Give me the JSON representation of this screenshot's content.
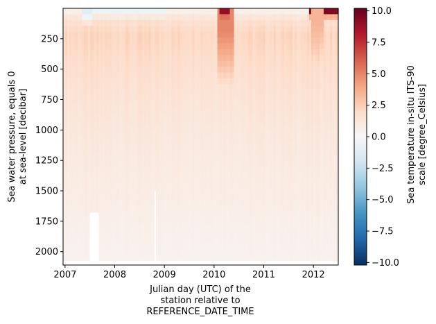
{
  "chart_data": {
    "type": "heatmap",
    "title": "",
    "xlabel": [
      "Julian day (UTC) of the",
      "station relative to",
      "REFERENCE_DATE_TIME"
    ],
    "ylabel": [
      "Sea water pressure, equals 0",
      "at sea-level [decibar]"
    ],
    "colorbar_label": [
      "Sea temperature in-situ ITS-90",
      "scale [degree_Celsius]"
    ],
    "colormap": "RdBu_r",
    "x_range": [
      2006.96,
      2012.5
    ],
    "y_range": [
      2110,
      0
    ],
    "y_inverted": true,
    "color_range": [
      -10.2,
      10.2
    ],
    "x_ticks": [
      2007,
      2008,
      2009,
      2010,
      2011,
      2012
    ],
    "x_tick_labels": [
      "2007",
      "2008",
      "2009",
      "2010",
      "2011",
      "2012"
    ],
    "y_ticks": [
      250,
      500,
      750,
      1000,
      1250,
      1500,
      1750,
      2000
    ],
    "y_tick_labels": [
      "250",
      "500",
      "750",
      "1000",
      "1250",
      "1500",
      "1750",
      "2000"
    ],
    "colorbar_ticks": [
      10.0,
      7.5,
      5.0,
      2.5,
      0.0,
      -2.5,
      -5.0,
      -7.5,
      -10.0
    ],
    "colorbar_tick_labels": [
      "10.0",
      "7.5",
      "5.0",
      "2.5",
      "0.0",
      "−2.5",
      "−5.0",
      "−7.5",
      "−10.0"
    ],
    "depth_temperature_profile": {
      "pressure": [
        0,
        100,
        200,
        300,
        400,
        600,
        800,
        1000,
        1200,
        1400,
        1600,
        1800,
        2000,
        2110
      ],
      "temperature": [
        0.3,
        1.6,
        2.2,
        2.1,
        1.9,
        1.6,
        1.35,
        1.15,
        1.0,
        0.85,
        0.7,
        0.55,
        0.45,
        0.4
      ]
    },
    "surface_anomalies": [
      {
        "x_start": 2007.35,
        "x_end": 2007.55,
        "p_max": 140,
        "temperature": -1.2
      },
      {
        "x_start": 2007.55,
        "x_end": 2009.0,
        "p_max": 80,
        "temperature": -0.5
      },
      {
        "x_start": 2010.05,
        "x_end": 2010.4,
        "p_max": 650,
        "temperature": 5.0
      },
      {
        "x_start": 2010.1,
        "x_end": 2010.3,
        "p_max": 80,
        "temperature": 9.0
      },
      {
        "x_start": 2011.9,
        "x_end": 2012.5,
        "p_max": 90,
        "temperature": 9.5
      },
      {
        "x_start": 2011.95,
        "x_end": 2012.2,
        "p_max": 450,
        "temperature": 3.5
      }
    ],
    "missing_data_regions": [
      {
        "x_start": 2007.5,
        "x_end": 2007.68,
        "p_min": 1680,
        "p_max": 2110
      },
      {
        "x_start": 2008.8,
        "x_end": 2008.83,
        "p_min": 1500,
        "p_max": 2110
      },
      {
        "x_start": 2006.96,
        "x_end": 2012.5,
        "p_min": 2075,
        "p_max": 2110
      }
    ]
  }
}
